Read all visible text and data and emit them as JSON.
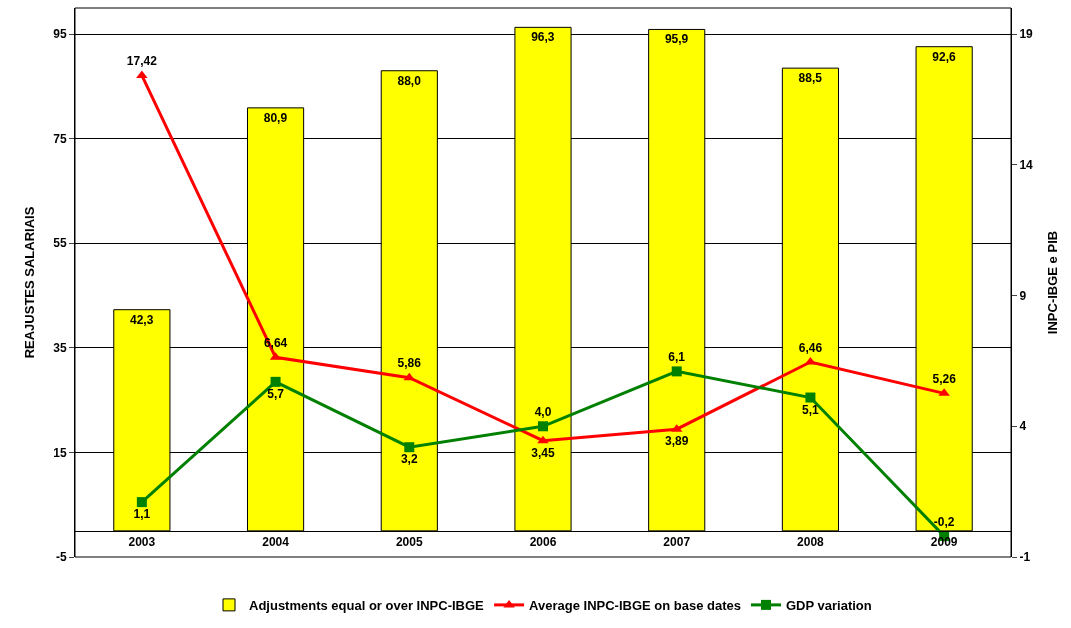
{
  "chart_data": {
    "type": "bar",
    "categories": [
      "2003",
      "2004",
      "2005",
      "2006",
      "2007",
      "2008",
      "2009"
    ],
    "series": [
      {
        "name": "Adjustments equal or over INPC-IBGE",
        "color": "#ffff00",
        "values": [
          42.3,
          80.9,
          88.0,
          96.3,
          95.9,
          88.5,
          92.6
        ],
        "value_labels": [
          "42,3",
          "80,9",
          "88,0",
          "96,3",
          "95,9",
          "88,5",
          "92,6"
        ]
      },
      {
        "name": "Average INPC-IBGE on base dates",
        "type": "line",
        "axis": "y2",
        "color": "#ff0000",
        "marker": "triangle",
        "values": [
          17.42,
          6.64,
          5.86,
          3.45,
          3.89,
          6.46,
          5.26
        ],
        "value_labels": [
          "17,42",
          "6,64",
          "5,86",
          "3,45",
          "3,89",
          "6,46",
          "5,26"
        ]
      },
      {
        "name": "GDP variation",
        "type": "line",
        "axis": "y2",
        "color": "#008000",
        "marker": "square",
        "values": [
          1.1,
          5.7,
          3.2,
          4.0,
          6.1,
          5.1,
          -0.2
        ],
        "value_labels": [
          "1,1",
          "5,7",
          "3,2",
          "4,0",
          "6,1",
          "5,1",
          "-0,2"
        ]
      }
    ],
    "ylabel": "REAJUSTES SALARIAIS",
    "y2label": "INPC-IBGE e PIB",
    "ylim": [
      -5,
      100
    ],
    "yticks": [
      -5,
      15,
      35,
      55,
      75,
      95
    ],
    "y2lim": [
      -1,
      20
    ],
    "y2ticks": [
      -1,
      4,
      9,
      14,
      19
    ],
    "grid": "y",
    "legend": "bottom"
  }
}
